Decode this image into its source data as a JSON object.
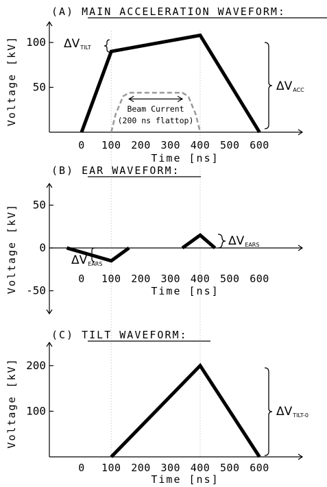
{
  "chart_data": [
    {
      "type": "line",
      "title": "(A) MAIN ACCELERATION WAVEFORM:",
      "xlabel": "Time [ns]",
      "ylabel": "Voltage [kV]",
      "xticks": [
        "0",
        "100",
        "200",
        "300",
        "400",
        "500",
        "600"
      ],
      "yticks": [
        "50",
        "100"
      ],
      "xlim": [
        -200,
        700
      ],
      "ylim": [
        0,
        120
      ],
      "series": [
        {
          "x": [
            0,
            100,
            400,
            600
          ],
          "y": [
            0,
            90,
            108,
            0
          ]
        }
      ],
      "beam": {
        "label_line1": "Beam Current",
        "label_line2": "(200 ns flattop)",
        "x": [
          100,
          115,
          140,
          160,
          340,
          360,
          385,
          400
        ],
        "y": [
          0,
          20,
          40,
          44,
          44,
          40,
          20,
          0
        ],
        "arrow_x": [
          160,
          340
        ],
        "arrow_y": 37
      },
      "annotations": [
        {
          "text": "ΔV",
          "sub": "TILT"
        },
        {
          "text": "ΔV",
          "sub": "ACC"
        }
      ]
    },
    {
      "type": "line",
      "title": "(B) EAR WAVEFORM:",
      "xlabel": "Time [ns]",
      "ylabel": "Voltage [kV]",
      "xticks": [
        "0",
        "100",
        "200",
        "300",
        "400",
        "500",
        "600"
      ],
      "yticks": [
        "-50",
        "0",
        "50"
      ],
      "xlim": [
        -200,
        700
      ],
      "ylim": [
        -70,
        70
      ],
      "series": [
        {
          "x": [
            -50,
            100,
            160
          ],
          "y": [
            0,
            -15,
            0
          ]
        },
        {
          "x": [
            340,
            400,
            450
          ],
          "y": [
            0,
            15,
            0
          ]
        }
      ],
      "annotations": [
        {
          "text": "ΔV",
          "sub": "EARS"
        },
        {
          "text": "ΔV",
          "sub": "EARS"
        }
      ]
    },
    {
      "type": "line",
      "title": "(C) TILT WAVEFORM:",
      "xlabel": "Time [ns]",
      "ylabel": "Voltage [kV]",
      "xticks": [
        "0",
        "100",
        "200",
        "300",
        "400",
        "500",
        "600"
      ],
      "yticks": [
        "100",
        "200"
      ],
      "xlim": [
        -200,
        700
      ],
      "ylim": [
        0,
        240
      ],
      "series": [
        {
          "x": [
            100,
            400,
            600
          ],
          "y": [
            0,
            200,
            0
          ]
        }
      ],
      "annotations": [
        {
          "text": "ΔV",
          "sub": "TILT-0"
        }
      ]
    }
  ]
}
